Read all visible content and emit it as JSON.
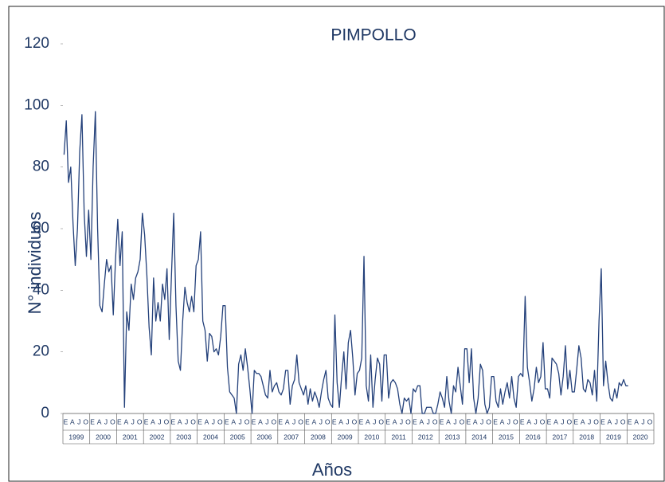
{
  "chart_data": {
    "type": "line",
    "title": "PIMPOLLO",
    "x_label": "Años",
    "y_label": "N° individuos",
    "ylim": [
      0,
      120
    ],
    "yticks": [
      0,
      20,
      40,
      60,
      80,
      100,
      120
    ],
    "grid": false,
    "color": "#23407a",
    "years": [
      "1999",
      "2000",
      "2001",
      "2002",
      "2003",
      "2004",
      "2005",
      "2006",
      "2007",
      "2008",
      "2009",
      "2010",
      "2011",
      "2012",
      "2013",
      "2014",
      "2015",
      "2016",
      "2017",
      "2018",
      "2019",
      "2020"
    ],
    "categories": [
      "E",
      null,
      null,
      "A",
      null,
      null,
      "J",
      null,
      null,
      "O",
      null,
      null,
      "E",
      null,
      null,
      "A",
      null,
      null,
      "J",
      null,
      null,
      "O",
      null,
      null,
      "E",
      null,
      null,
      "A",
      null,
      null,
      "J",
      null,
      null,
      "O",
      null,
      null,
      "E",
      null,
      null,
      "A",
      null,
      null,
      "J",
      null,
      null,
      "O",
      null,
      null,
      "E",
      null,
      null,
      "A",
      null,
      null,
      "J",
      null,
      null,
      "O",
      null,
      null,
      "E",
      null,
      null,
      "A",
      null,
      null,
      "J",
      null,
      null,
      "O",
      null,
      null,
      "E",
      null,
      null,
      "A",
      null,
      null,
      "J",
      null,
      null,
      "O",
      null,
      null,
      "E",
      null,
      null,
      "A",
      null,
      null,
      "J",
      null,
      null,
      "O",
      null,
      null,
      "E",
      null,
      null,
      "A",
      null,
      null,
      "J",
      null,
      null,
      "O",
      null,
      null,
      "E",
      null,
      null,
      "A",
      null,
      null,
      "J",
      null,
      null,
      "O",
      null,
      null,
      "E",
      null,
      null,
      "A",
      null,
      null,
      "J",
      null,
      null,
      "O",
      null,
      null,
      "E",
      null,
      null,
      "A",
      null,
      null,
      "J",
      null,
      null,
      "O",
      null,
      null,
      "E",
      null,
      null,
      "A",
      null,
      null,
      "J",
      null,
      null,
      "O",
      null,
      null,
      "E",
      null,
      null,
      "A",
      null,
      null,
      "J",
      null,
      null,
      "O",
      null,
      null,
      "E",
      null,
      null,
      "A",
      null,
      null,
      "J",
      null,
      null,
      "O",
      null,
      null,
      "E",
      null,
      null,
      "A",
      null,
      null,
      "J",
      null,
      null,
      "O",
      null,
      null,
      "E",
      null,
      null,
      "A",
      null,
      null,
      "J",
      null,
      null,
      "O",
      null,
      null,
      "E",
      null,
      null,
      "A",
      null,
      null,
      "J",
      null,
      null,
      "O",
      null,
      null,
      "E",
      null,
      null,
      "A",
      null,
      null,
      "J",
      null,
      null,
      "O",
      null,
      null,
      "E",
      null,
      null,
      "A",
      null,
      null,
      "J",
      null,
      null,
      "O",
      null,
      null,
      "E",
      null,
      null,
      "A",
      null,
      null,
      "J",
      null,
      null,
      "O",
      null,
      null,
      "E",
      null,
      null,
      "A",
      null,
      null,
      "J",
      null,
      null,
      "O",
      null,
      null
    ],
    "values": [
      84,
      95,
      75,
      80,
      62,
      48,
      60,
      85,
      97,
      65,
      51,
      66,
      50,
      80,
      98,
      60,
      35,
      33,
      42,
      50,
      46,
      48,
      32,
      50,
      63,
      48,
      59,
      2,
      33,
      27,
      42,
      37,
      44,
      46,
      50,
      65,
      58,
      45,
      28,
      19,
      44,
      30,
      36,
      30,
      42,
      37,
      47,
      24,
      45,
      65,
      35,
      17,
      14,
      30,
      41,
      36,
      33,
      38,
      33,
      48,
      50,
      59,
      30,
      27,
      17,
      26,
      25,
      20,
      21,
      19,
      25,
      35,
      35,
      15,
      7,
      6,
      5,
      0,
      16,
      19,
      14,
      21,
      15,
      8,
      0,
      14,
      13,
      13,
      12,
      9,
      6,
      5,
      14,
      7,
      9,
      10,
      7,
      6,
      8,
      14,
      14,
      3,
      9,
      11,
      19,
      10,
      8,
      6,
      9,
      3,
      8,
      4,
      7,
      5,
      2,
      7,
      11,
      14,
      5,
      3,
      2,
      32,
      10,
      2,
      12,
      20,
      8,
      23,
      27,
      18,
      6,
      13,
      14,
      18,
      51,
      9,
      4,
      19,
      2,
      11,
      18,
      16,
      4,
      19,
      19,
      5,
      10,
      11,
      10,
      8,
      3,
      0,
      5,
      4,
      5,
      0,
      8,
      7,
      9,
      9,
      0,
      0,
      2,
      2,
      2,
      0,
      0,
      3,
      7,
      5,
      2,
      12,
      4,
      0,
      9,
      7,
      15,
      9,
      3,
      21,
      21,
      10,
      21,
      5,
      0,
      5,
      16,
      14,
      3,
      0,
      2,
      12,
      12,
      4,
      2,
      8,
      3,
      7,
      10,
      5,
      12,
      5,
      2,
      12,
      13,
      12,
      38,
      15,
      10,
      4,
      8,
      15,
      10,
      12,
      23,
      8,
      8,
      5,
      18,
      17,
      16,
      13,
      6,
      12,
      22,
      8,
      14,
      7,
      7,
      14,
      22,
      18,
      8,
      7,
      11,
      10,
      6,
      14,
      4,
      30,
      47,
      9,
      17,
      10,
      5,
      4,
      8,
      5,
      10,
      9,
      11,
      9,
      9,
      null,
      null,
      null,
      null,
      null,
      null,
      null,
      null,
      null,
      null,
      null
    ]
  }
}
